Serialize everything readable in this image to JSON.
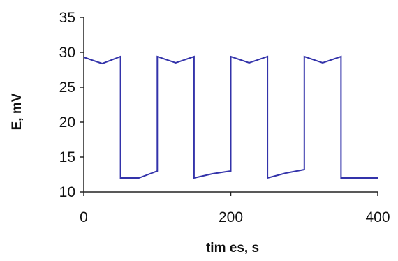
{
  "chart_data": {
    "type": "line",
    "title": "",
    "xlabel": "tim es, s",
    "ylabel": "E, mV",
    "xlim": [
      0,
      400
    ],
    "ylim": [
      10,
      35
    ],
    "x_ticks": [
      "0",
      "200",
      "400"
    ],
    "y_ticks": [
      "10",
      "15",
      "20",
      "25",
      "30",
      "35"
    ],
    "grid": false,
    "legend": "none",
    "line_color": "#3333aa",
    "series": [
      {
        "x": [
          0,
          25,
          50,
          50,
          75,
          100,
          100,
          125,
          150,
          150,
          175,
          200,
          200,
          225,
          250,
          250,
          275,
          300,
          300,
          325,
          350,
          350,
          400
        ],
        "y": [
          29.3,
          28.4,
          29.4,
          12.0,
          12.0,
          13.0,
          29.4,
          28.5,
          29.4,
          12.0,
          12.6,
          13.0,
          29.4,
          28.5,
          29.4,
          12.0,
          12.7,
          13.2,
          29.4,
          28.5,
          29.4,
          12.0,
          12.0
        ]
      }
    ]
  }
}
